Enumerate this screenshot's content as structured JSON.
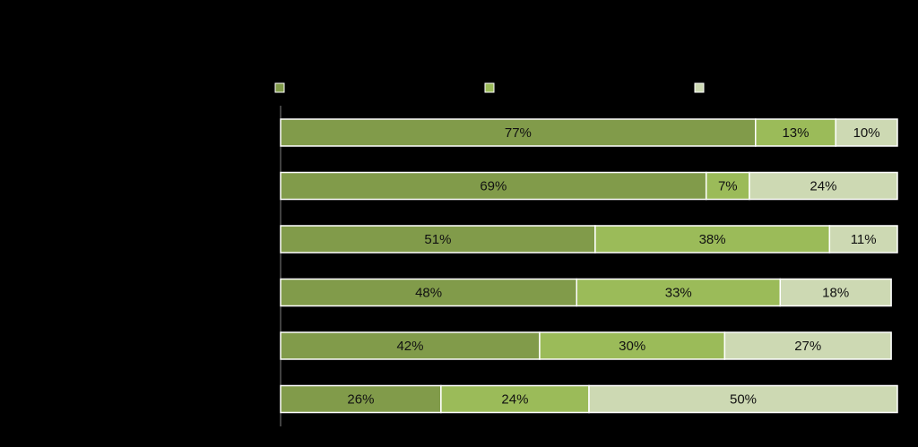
{
  "chart_data": {
    "type": "bar",
    "orientation": "horizontal",
    "stacked": true,
    "percent": true,
    "legend": {
      "placement": "top"
    },
    "grid": false,
    "xlim": [
      0,
      100
    ],
    "categories": [
      "",
      "",
      "",
      "",
      "",
      ""
    ],
    "series": [
      {
        "color": "#819b4a",
        "values": [
          77,
          69,
          51,
          48,
          42,
          26
        ],
        "labels": [
          "77%",
          "69%",
          "51%",
          "48%",
          "42%",
          "26%"
        ]
      },
      {
        "color": "#9bbb59",
        "values": [
          13,
          7,
          38,
          33,
          30,
          24
        ],
        "labels": [
          "13%",
          "7%",
          "38%",
          "33%",
          "30%",
          "24%"
        ]
      },
      {
        "color": "#cdd9b3",
        "values": [
          10,
          24,
          11,
          18,
          27,
          50
        ],
        "labels": [
          "10%",
          "24%",
          "11%",
          "18%",
          "27%",
          "50%"
        ]
      }
    ]
  }
}
